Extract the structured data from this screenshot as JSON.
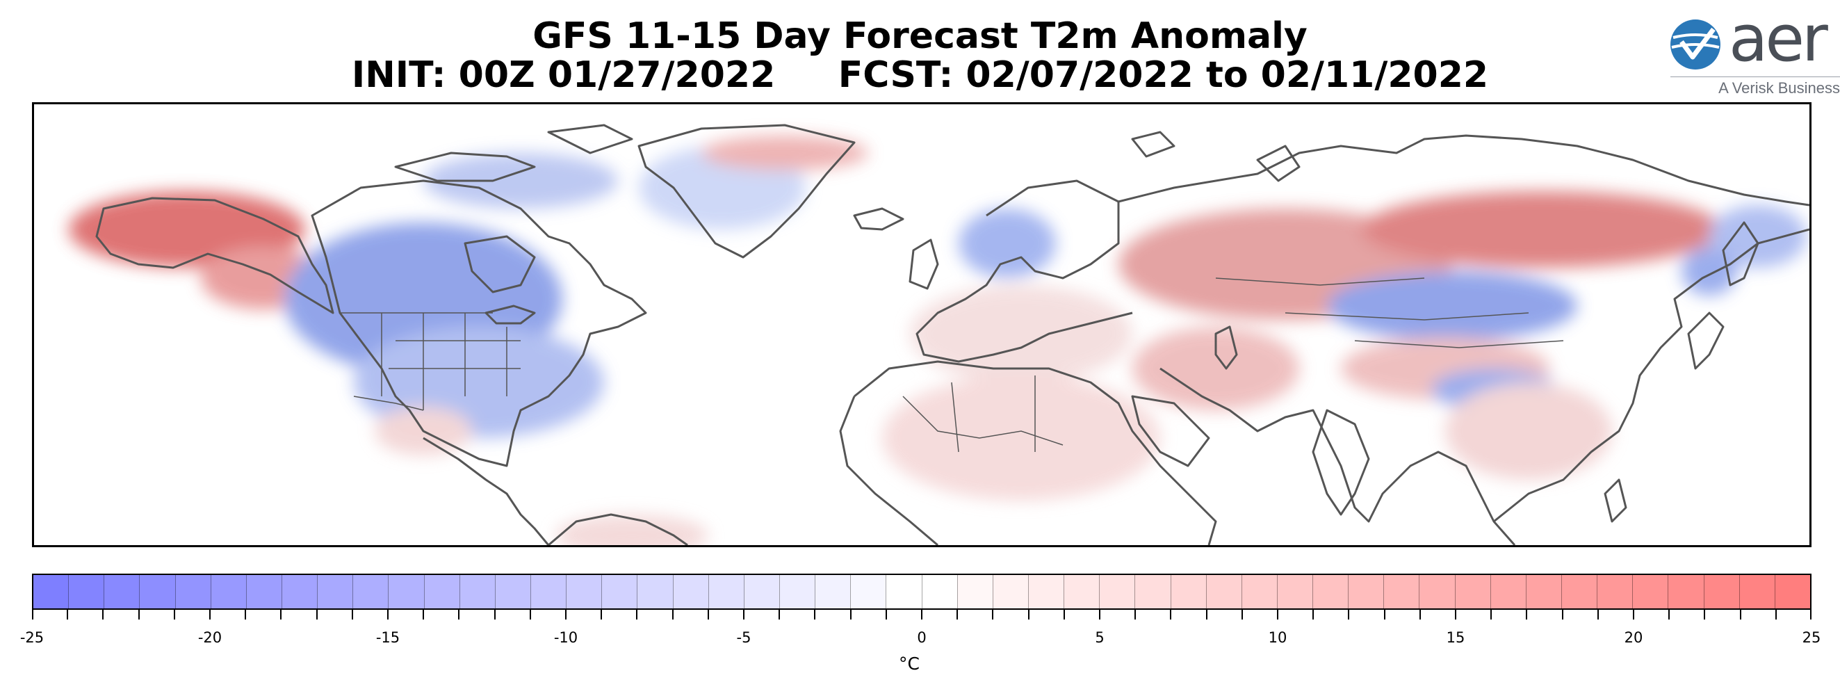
{
  "title": {
    "line1": "GFS 11-15 Day Forecast T2m Anomaly",
    "line2": "INIT: 00Z 01/27/2022     FCST: 02/07/2022 to 02/11/2022"
  },
  "logo": {
    "wordmark": "aer",
    "tagline": "A Verisk Business",
    "icon": "aer-globe-checkmark-icon",
    "brand_color": "#2a78b8"
  },
  "map": {
    "field": "T2m anomaly",
    "coverage": "North America, Greenland, Europe, Africa, Asia",
    "regions": [
      {
        "name": "Alaska",
        "sign": "warm"
      },
      {
        "name": "Central Canada / Northern Plains / Great Lakes / Eastern US",
        "sign": "cold"
      },
      {
        "name": "Greenland",
        "sign": "cold"
      },
      {
        "name": "Scandinavia",
        "sign": "cold"
      },
      {
        "name": "European Russia / Siberia",
        "sign": "warm"
      },
      {
        "name": "Kazakhstan / Mongolia",
        "sign": "cold"
      },
      {
        "name": "Far East Russia / Kamchatka",
        "sign": "cold"
      },
      {
        "name": "North Africa / Middle East",
        "sign": "weak warm"
      },
      {
        "name": "Tibetan Plateau",
        "sign": "mixed"
      }
    ],
    "colors": {
      "cold": "#7b7cfb",
      "neutral": "#ffffff",
      "warm": "#ff7b7b",
      "coast": "#555555"
    }
  },
  "colorbar": {
    "min": -25,
    "max": 25,
    "step": 1,
    "tick_labels": [
      "-25",
      "-20",
      "-15",
      "-10",
      "-5",
      "0",
      "5",
      "10",
      "15",
      "20",
      "25"
    ],
    "unit": "°C",
    "min_color": "#7b7cff",
    "max_color": "#ff7b7b"
  }
}
